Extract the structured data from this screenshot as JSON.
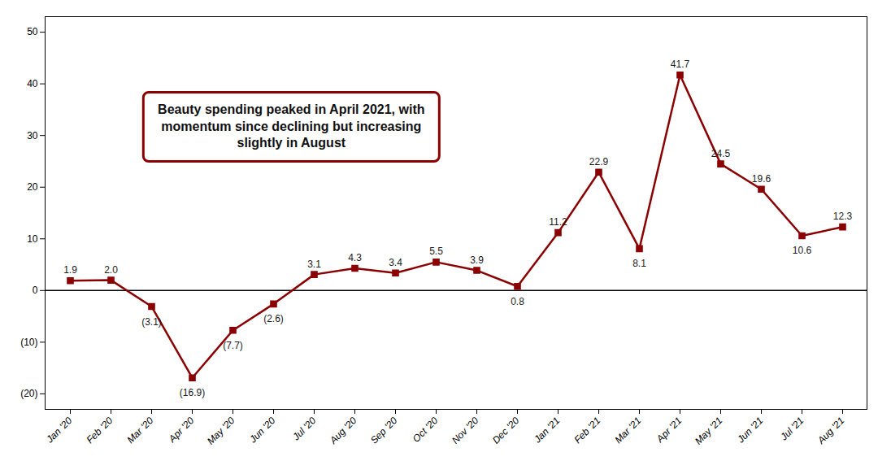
{
  "chart_data": {
    "type": "line",
    "categories": [
      "Jan '20",
      "Feb '20",
      "Mar '20",
      "Apr '20",
      "May '20",
      "Jun '20",
      "Jul '20",
      "Aug '20",
      "Sep '20",
      "Oct '20",
      "Nov '20",
      "Dec '20",
      "Jan '21",
      "Feb '21",
      "Mar '21",
      "Apr '21",
      "May '21",
      "Jun '21",
      "Jul '21",
      "Aug '21"
    ],
    "values": [
      1.9,
      2.0,
      -3.1,
      -16.9,
      -7.7,
      -2.6,
      3.1,
      4.3,
      3.4,
      5.5,
      3.9,
      0.8,
      11.2,
      22.9,
      8.1,
      41.7,
      24.5,
      19.6,
      10.6,
      12.3
    ],
    "value_labels": [
      "1.9",
      "2.0",
      "(3.1)",
      "(16.9)",
      "(7.7)",
      "(2.6)",
      "3.1",
      "4.3",
      "3.4",
      "5.5",
      "3.9",
      "0.8",
      "11.2",
      "22.9",
      "8.1",
      "41.7",
      "24.5",
      "19.6",
      "10.6",
      "12.3"
    ],
    "color": "#8B0000",
    "marker": "square",
    "ylim": [
      -23,
      53
    ],
    "yticks": [
      {
        "value": -20,
        "label": "(20)"
      },
      {
        "value": -10,
        "label": "(10)"
      },
      0,
      10,
      20,
      30,
      40,
      50
    ],
    "grid": false,
    "data_labels": true,
    "annotation": "Beauty spending peaked in April 2021, with\nmomentum since declining but increasing\nslightly in August"
  }
}
